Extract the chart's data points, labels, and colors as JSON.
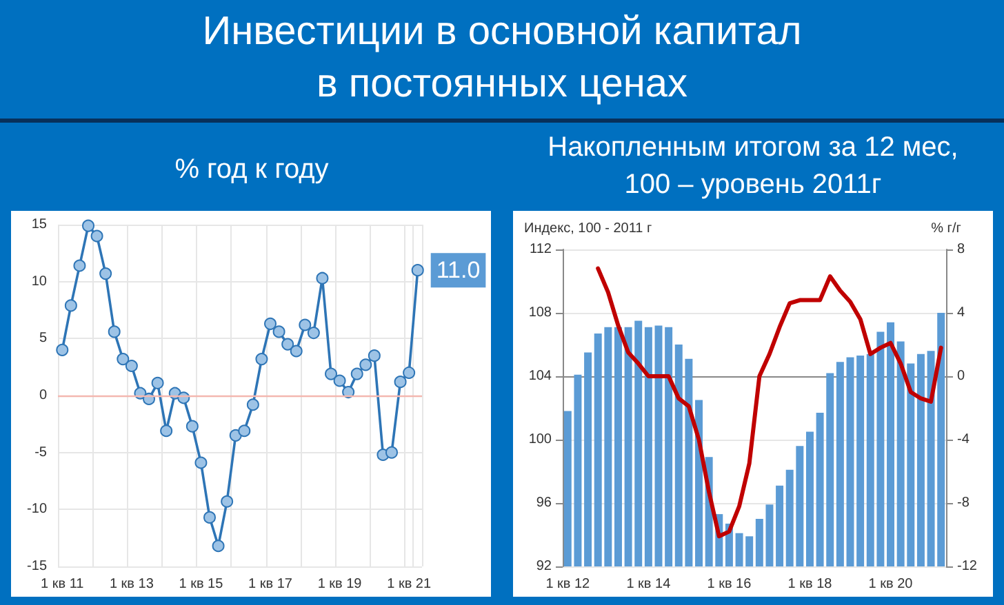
{
  "chart_data": [
    {
      "type": "line",
      "title": "Инвестиции в основной капитал в постоянных ценах",
      "subtitle": "% год к году",
      "categories": [
        "1 кв 11",
        null,
        null,
        null,
        null,
        null,
        null,
        null,
        "1 кв 13",
        null,
        null,
        null,
        null,
        null,
        null,
        null,
        "1 кв 15",
        null,
        null,
        null,
        null,
        null,
        null,
        null,
        "1 кв 17",
        null,
        null,
        null,
        null,
        null,
        null,
        null,
        "1 кв 19",
        null,
        null,
        null,
        null,
        null,
        null,
        null,
        "1 кв 21",
        null
      ],
      "series": [
        {
          "color": "#2e75b6",
          "values": [
            4.0,
            7.9,
            11.4,
            14.9,
            14.0,
            10.7,
            5.6,
            3.2,
            2.6,
            0.2,
            -0.3,
            1.1,
            -3.1,
            0.2,
            -0.2,
            -2.7,
            -5.9,
            -10.7,
            -13.2,
            -9.3,
            -3.5,
            -3.1,
            -0.8,
            3.2,
            6.3,
            5.6,
            4.5,
            3.9,
            6.2,
            5.5,
            10.3,
            1.9,
            1.3,
            0.3,
            1.9,
            2.7,
            3.5,
            -5.2,
            -5.0,
            1.2,
            2.0,
            11.0
          ],
          "value_labels": [
            null,
            null,
            null,
            null,
            null,
            null,
            null,
            null,
            null,
            null,
            null,
            null,
            null,
            null,
            null,
            null,
            null,
            null,
            null,
            null,
            null,
            null,
            null,
            null,
            null,
            null,
            null,
            null,
            null,
            null,
            null,
            null,
            null,
            null,
            null,
            null,
            null,
            null,
            null,
            null,
            null,
            "11.0"
          ]
        }
      ],
      "ylim": [
        -15,
        15
      ],
      "yticks": [
        -15,
        -10,
        -5,
        0,
        5,
        10,
        15
      ],
      "grid": true,
      "marker": "circle",
      "ref_lines": [
        {
          "axis": "y",
          "value": 0,
          "color": "#f4b8b0"
        }
      ]
    },
    {
      "type": "bar",
      "subtitle": "Накопленным итогом за 12 мес, 100 – уровень 2011г",
      "ylabel": "Индекс, 100 - 2011 г",
      "y2label": "% г/г",
      "categories": [
        "1 кв 12",
        null,
        null,
        null,
        null,
        null,
        null,
        null,
        "1 кв 14",
        null,
        null,
        null,
        null,
        null,
        null,
        null,
        "1 кв 16",
        null,
        null,
        null,
        null,
        null,
        null,
        null,
        "1 кв 18",
        null,
        null,
        null,
        null,
        null,
        null,
        null,
        "1 кв 20",
        null,
        null,
        null,
        null,
        null
      ],
      "series": [
        {
          "color": "#5b9bd5",
          "values": [
            101.8,
            104.1,
            105.5,
            106.7,
            107.1,
            107.1,
            107.1,
            107.5,
            107.1,
            107.2,
            107.1,
            106.0,
            105.1,
            102.5,
            98.9,
            95.3,
            94.7,
            94.1,
            93.9,
            95.0,
            95.9,
            97.1,
            98.1,
            99.6,
            100.5,
            101.7,
            104.2,
            104.9,
            105.2,
            105.3,
            105.4,
            106.8,
            107.4,
            106.2,
            104.8,
            105.4,
            105.6,
            108.0
          ]
        },
        {
          "type": "line",
          "axis": "y2",
          "color": "#c00000",
          "values": [
            null,
            null,
            null,
            6.8,
            5.3,
            3.2,
            1.5,
            0.8,
            0.0,
            0.0,
            0.0,
            -1.4,
            -1.9,
            -4.0,
            -7.3,
            -10.1,
            -9.8,
            -8.2,
            -5.5,
            0.0,
            1.4,
            3.1,
            4.6,
            4.8,
            4.8,
            4.8,
            6.3,
            5.4,
            4.7,
            3.6,
            1.4,
            1.8,
            2.1,
            0.8,
            -1.0,
            -1.4,
            -1.6,
            1.8
          ]
        }
      ],
      "ylim": [
        92,
        112
      ],
      "yticks": [
        92,
        96,
        100,
        104,
        108,
        112
      ],
      "y2lim": [
        -12,
        8
      ],
      "y2ticks": [
        -12,
        -8,
        -4,
        0,
        4,
        8
      ],
      "grid": "y",
      "marker": "none"
    }
  ]
}
